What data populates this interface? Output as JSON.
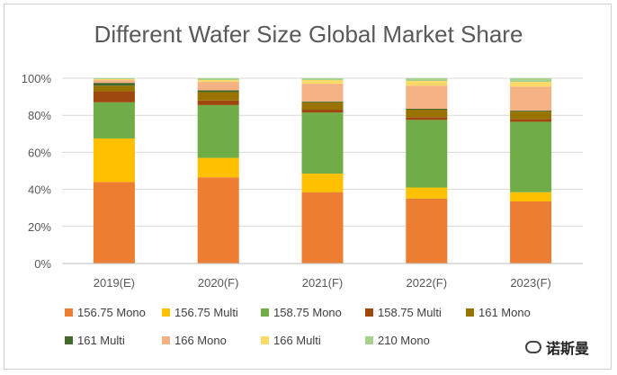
{
  "chart_data": {
    "type": "bar",
    "stacked": true,
    "title": "Different Wafer Size Global Market Share",
    "categories": [
      "2019(E)",
      "2020(F)",
      "2021(F)",
      "2022(F)",
      "2023(F)"
    ],
    "ylim": [
      0,
      100
    ],
    "yticks": [
      "0%",
      "20%",
      "40%",
      "60%",
      "80%",
      "100%"
    ],
    "series": [
      {
        "name": "156.75 Mono",
        "color": "#ED7D31",
        "values": [
          44,
          46.5,
          38.5,
          35,
          33.5
        ]
      },
      {
        "name": "156.75 Multi",
        "color": "#FFC000",
        "values": [
          23.5,
          10.5,
          10,
          6,
          5
        ]
      },
      {
        "name": "158.75 Mono",
        "color": "#70AD47",
        "values": [
          19.5,
          28.5,
          33,
          36.5,
          38
        ]
      },
      {
        "name": "158.75 Multi",
        "color": "#9E480E",
        "values": [
          6,
          2.5,
          1.5,
          1.5,
          1.5
        ]
      },
      {
        "name": "161 Mono",
        "color": "#997300",
        "values": [
          3,
          4.5,
          4,
          4,
          4
        ]
      },
      {
        "name": "161 Multi",
        "color": "#43682B",
        "values": [
          1.5,
          1,
          0.5,
          0.5,
          0.5
        ]
      },
      {
        "name": "166 Mono",
        "color": "#F4B183",
        "values": [
          1.5,
          4.5,
          9.5,
          12.5,
          13
        ]
      },
      {
        "name": "166 Multi",
        "color": "#FFD966",
        "values": [
          0.5,
          1,
          2,
          2.5,
          2.5
        ]
      },
      {
        "name": "210 Mono",
        "color": "#A9D18E",
        "values": [
          0.5,
          1,
          1,
          1.5,
          2
        ]
      }
    ],
    "legend_position": "bottom",
    "grid": true
  },
  "watermark": {
    "label": "诺斯曼"
  }
}
